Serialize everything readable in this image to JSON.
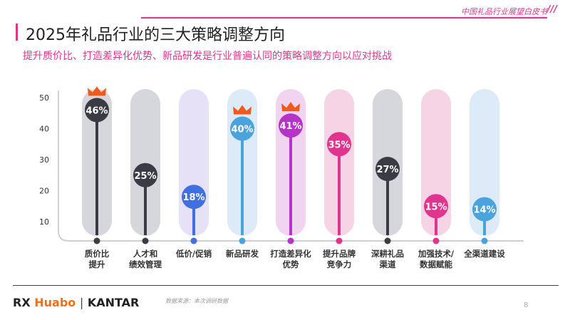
{
  "header": {
    "brand": "中国礼品行业展望白皮书",
    "title": "2025年礼品行业的三大策略调整方向",
    "subtitle": "提升质价比、打造差异化优势、新品研发是行业普遍认同的策略调整方向以应对挑战"
  },
  "chart_data": {
    "type": "lollipop",
    "yticks": [
      10,
      20,
      30,
      40,
      50
    ],
    "ylim": [
      0,
      50
    ],
    "categories": [
      "质价比\n提升",
      "人才和\n绩效管理",
      "低价/促销",
      "新品研发",
      "打造差异化\n优势",
      "提升品牌\n竞争力",
      "深耕礼品\n渠道",
      "加强技术/\n数据赋能",
      "全渠道建设"
    ],
    "values": [
      46,
      25,
      18,
      40,
      41,
      35,
      27,
      15,
      14
    ],
    "labels": [
      "46%",
      "25%",
      "18%",
      "40%",
      "41%",
      "35%",
      "27%",
      "15%",
      "14%"
    ],
    "colors": [
      "#3b3b45",
      "#3b3b45",
      "#3f6fe0",
      "#4aa3dc",
      "#b533c6",
      "#e0348f",
      "#3b3b45",
      "#e0348f",
      "#4aa3dc"
    ],
    "track_colors": [
      "#d6d7dc",
      "#d6d7dc",
      "#e6e1f7",
      "#dcebf7",
      "#f1d5f0",
      "#f6d4e6",
      "#d6d7dc",
      "#f6d4e6",
      "#dcebf7"
    ],
    "crowned": [
      true,
      false,
      false,
      true,
      true,
      false,
      false,
      false,
      false
    ],
    "crown_color": "#f05a1a"
  },
  "footer": {
    "logo": "Huabo | KANTAR",
    "logo_rx": "RX",
    "logo_huabo": "Huabo",
    "logo_kantar": "KANTAR",
    "source": "数据来源：本次调研数据",
    "page": "8"
  }
}
